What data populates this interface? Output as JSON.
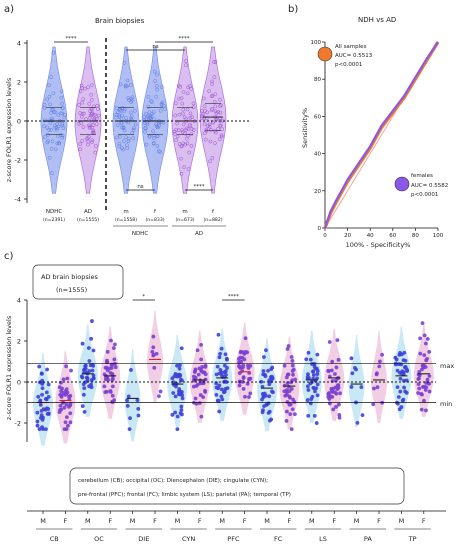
{
  "colors": {
    "ndhc": "#5a7be8",
    "ad": "#9b4fd6",
    "light_ndhc": "#a9b8f2",
    "light_ad": "#d7b7ee",
    "cyan_violin": "#bfe4f3",
    "pink_violin": "#efc6df",
    "all_samples": "#f07a2a",
    "females": "#8a58e8",
    "red_mean": "#dd2222",
    "dots": "#3f3fd8",
    "dots2": "#7a3fd0"
  },
  "panel_a": {
    "letter": "a)",
    "title": "Brain biopsies",
    "ylabel": "z-score FOLR1 expression levels",
    "yticks": [
      "4",
      "2",
      "0",
      "-2",
      "-4"
    ],
    "groups": [
      {
        "label": "NDHC",
        "n": "(n=2391)"
      },
      {
        "label": "AD",
        "n": "(n=1555)"
      },
      {
        "label": "m",
        "n": "(n=1558)"
      },
      {
        "label": "f",
        "n": "(n=833)"
      },
      {
        "label": "m",
        "n": "(n=673)"
      },
      {
        "label": "f",
        "n": "(n=882)"
      }
    ],
    "group_labels": [
      "NDHC",
      "AD"
    ],
    "sig": [
      {
        "text": "****"
      },
      {
        "text": "ns"
      },
      {
        "text": "****"
      },
      {
        "text": "ns"
      },
      {
        "text": "****"
      }
    ]
  },
  "panel_b": {
    "letter": "b)",
    "title": "NDH vs AD",
    "ylabel": "Sensitivity%",
    "xlabel": "100% - Specificity%",
    "ticks": [
      "0",
      "20",
      "40",
      "60",
      "80",
      "100"
    ],
    "all_samples": {
      "label": "All samples",
      "auc": "AUC= 0.5513",
      "p": "p<0.0001"
    },
    "females": {
      "label": "females",
      "auc": "AUC= 0.5582",
      "p": "p<0.0001"
    }
  },
  "panel_c": {
    "letter": "c)",
    "box_title": "AD brain biopsies",
    "box_n": "(n=1555)",
    "ylabel": "z-score FOLR1 expression levels",
    "yticks": [
      "4",
      "2",
      "0",
      "-2"
    ],
    "max_label": "max",
    "min_label": "min",
    "sig": [
      {
        "text": "*"
      },
      {
        "text": "****"
      }
    ],
    "sex": [
      "M",
      "F"
    ],
    "regions": [
      "CB",
      "OC",
      "DIE",
      "CYN",
      "PFC",
      "FC",
      "LS",
      "PA",
      "TP"
    ],
    "legend_line1": "cerebellum (CB); occipital (OC); Diencephalon (DIE); cingulate (CYN);",
    "legend_line2": "pre-frontal (PFC); frontal (FC); limbic system (LS); parietal (PA); temporal (TP)"
  },
  "chart_data": [
    {
      "type": "violin",
      "title": "Brain biopsies",
      "ylabel": "z-score FOLR1 expression levels",
      "ylim": [
        -4,
        4
      ],
      "categories": [
        "NDHC",
        "AD",
        "NDHC m",
        "NDHC f",
        "AD m",
        "AD f"
      ],
      "medians": [
        0,
        0,
        0,
        0,
        0,
        0.2
      ]
    },
    {
      "type": "line",
      "title": "NDH vs AD",
      "xlabel": "100% - Specificity%",
      "ylabel": "Sensitivity%",
      "xlim": [
        0,
        100
      ],
      "ylim": [
        0,
        100
      ],
      "series": [
        {
          "name": "All samples",
          "x": [
            0,
            5,
            10,
            20,
            30,
            40,
            50,
            60,
            70,
            80,
            90,
            100
          ],
          "y": [
            0,
            8,
            14,
            25,
            34,
            43,
            54,
            62,
            70,
            80,
            90,
            100
          ]
        },
        {
          "name": "females",
          "x": [
            0,
            5,
            10,
            20,
            30,
            40,
            50,
            60,
            70,
            80,
            90,
            100
          ],
          "y": [
            0,
            9,
            15,
            26,
            35,
            44,
            55,
            63,
            71,
            81,
            91,
            100
          ]
        }
      ]
    },
    {
      "type": "scatter",
      "title": "AD brain biopsies",
      "ylabel": "z-score FOLR1 expression levels",
      "ylim": [
        -2.5,
        4
      ],
      "categories": [
        "CB M",
        "CB F",
        "OC M",
        "OC F",
        "DIE M",
        "DIE F",
        "CYN M",
        "CYN F",
        "PFC M",
        "PFC F",
        "FC M",
        "FC F",
        "LS M",
        "LS F",
        "PA M",
        "PA F",
        "TP M",
        "TP F"
      ],
      "means": [
        -1,
        -0.9,
        0.4,
        0.3,
        -0.8,
        1.1,
        -0.1,
        0.1,
        0.2,
        0.5,
        -0.3,
        -0.2,
        0.1,
        0.2,
        -0.1,
        0.1,
        0.3,
        0.4
      ],
      "reference_lines": {
        "max": 0.9,
        "min": -1.0
      }
    }
  ]
}
